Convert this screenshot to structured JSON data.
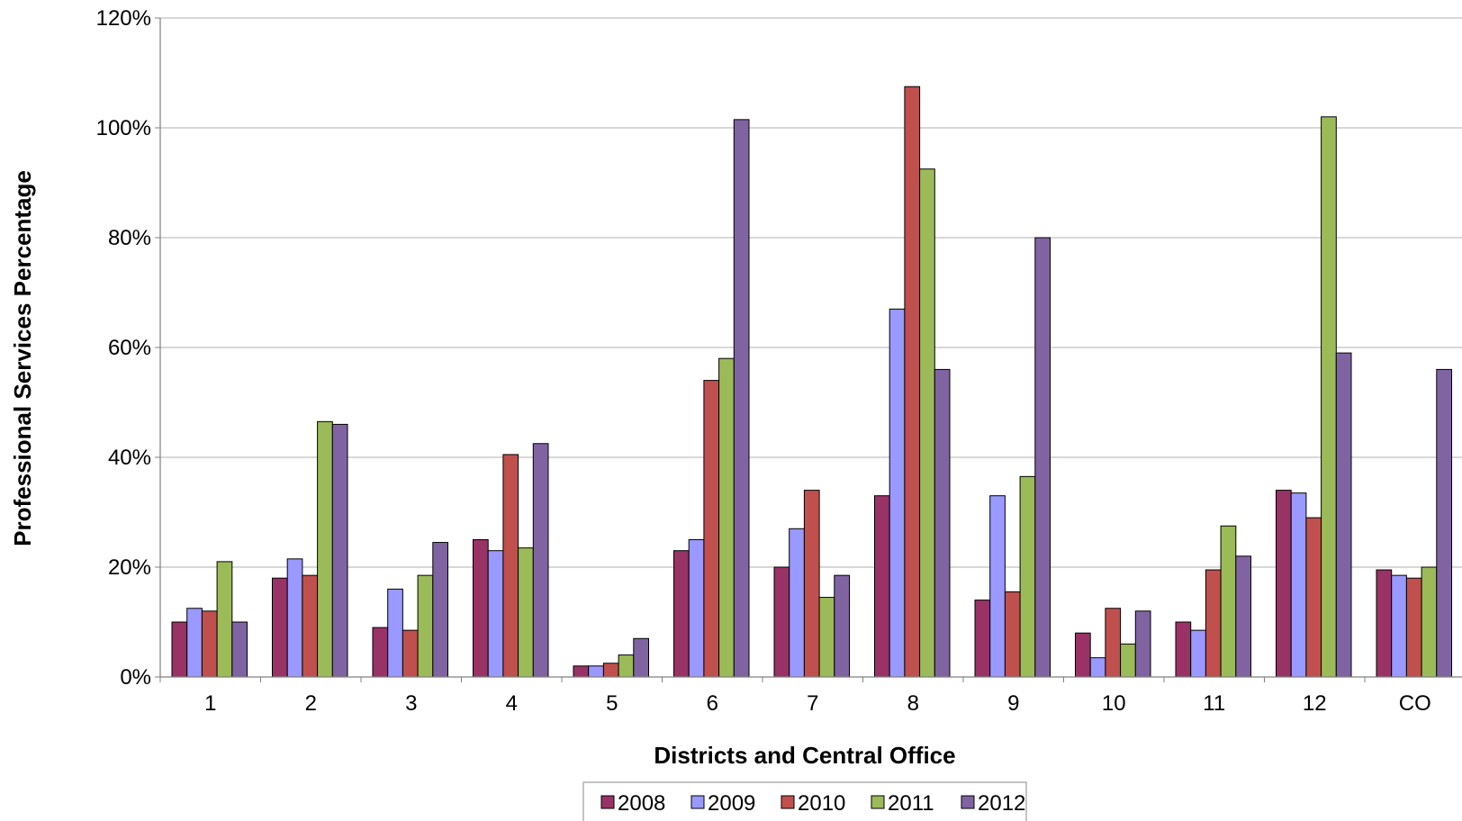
{
  "chart_data": {
    "type": "bar",
    "title": "",
    "xlabel": "Districts and Central Office",
    "ylabel": "Professional Services Percentage",
    "ylim": [
      0,
      120
    ],
    "y_ticks": [
      0,
      20,
      40,
      60,
      80,
      100,
      120
    ],
    "y_tick_labels": [
      "0%",
      "20%",
      "40%",
      "60%",
      "80%",
      "100%",
      "120%"
    ],
    "grid": true,
    "legend_position": "bottom-center",
    "categories": [
      "1",
      "2",
      "3",
      "4",
      "5",
      "6",
      "7",
      "8",
      "9",
      "10",
      "11",
      "12",
      "CO"
    ],
    "series": [
      {
        "name": "2008",
        "color": "#993366",
        "values": [
          10,
          18,
          9,
          25,
          2,
          23,
          20,
          33,
          14,
          8,
          10,
          34,
          19.5
        ]
      },
      {
        "name": "2009",
        "color": "#9999ff",
        "values": [
          12.5,
          21.5,
          16,
          23,
          2,
          25,
          27,
          67,
          33,
          3.5,
          8.5,
          33.5,
          18.5
        ]
      },
      {
        "name": "2010",
        "color": "#c0504d",
        "values": [
          12,
          18.5,
          8.5,
          40.5,
          2.5,
          54,
          34,
          107.5,
          15.5,
          12.5,
          19.5,
          29,
          18
        ]
      },
      {
        "name": "2011",
        "color": "#9bbb59",
        "values": [
          21,
          46.5,
          18.5,
          23.5,
          4,
          58,
          14.5,
          92.5,
          36.5,
          6,
          27.5,
          102,
          20
        ]
      },
      {
        "name": "2012",
        "color": "#8064a2",
        "values": [
          10,
          46,
          24.5,
          42.5,
          7,
          101.5,
          18.5,
          56,
          80,
          12,
          22,
          59,
          56
        ]
      }
    ]
  }
}
